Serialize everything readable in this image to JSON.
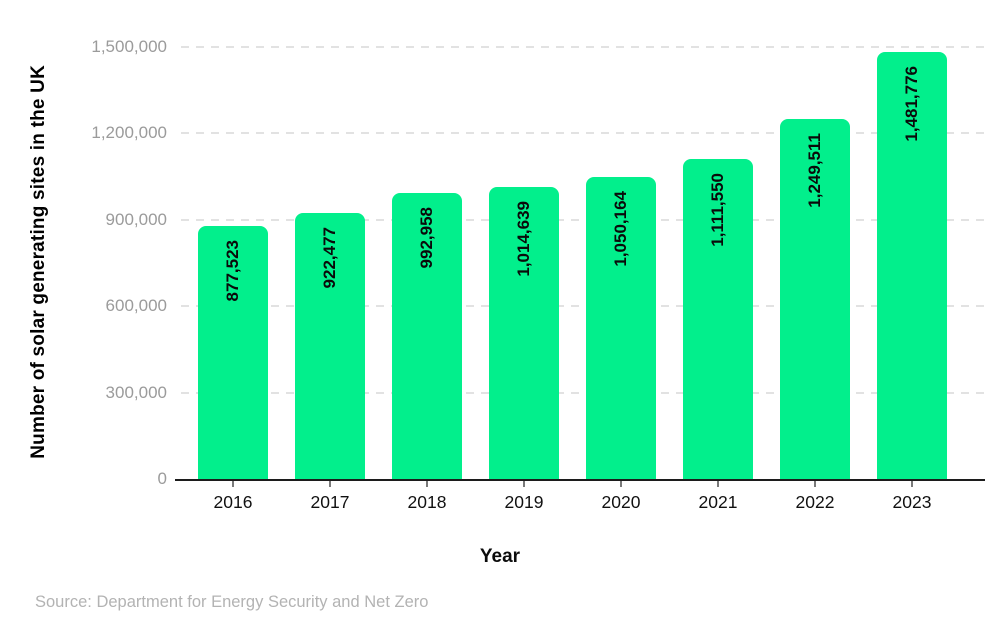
{
  "chart_data": {
    "type": "bar",
    "ylabel": "Number of solar generating sites in the UK",
    "xlabel": "Year",
    "categories": [
      "2016",
      "2017",
      "2018",
      "2019",
      "2020",
      "2021",
      "2022",
      "2023"
    ],
    "values": [
      877523,
      922477,
      992958,
      1014639,
      1050164,
      1111550,
      1249511,
      1481776
    ],
    "value_labels": [
      "877,523",
      "922,477",
      "992,958",
      "1,014,639",
      "1,050,164",
      "1,111,550",
      "1,249,511",
      "1,481,776"
    ],
    "yticks": [
      0,
      300000,
      600000,
      900000,
      1200000,
      1500000
    ],
    "ytick_labels": [
      "0",
      "300,000",
      "600,000",
      "900,000",
      "1,200,000",
      "1,500,000"
    ],
    "ylim": [
      0,
      1500000
    ],
    "grid": "horizontal-dashed",
    "legend": "none",
    "bar_color": "#02EF8C",
    "value_label_color": "#0a0a0a",
    "gridline_color": "#e2e2e2",
    "axis_color": "#1c1c1c",
    "tick_label_color": "#9b9b9b"
  },
  "source": "Source: Department for Energy Security and Net Zero"
}
